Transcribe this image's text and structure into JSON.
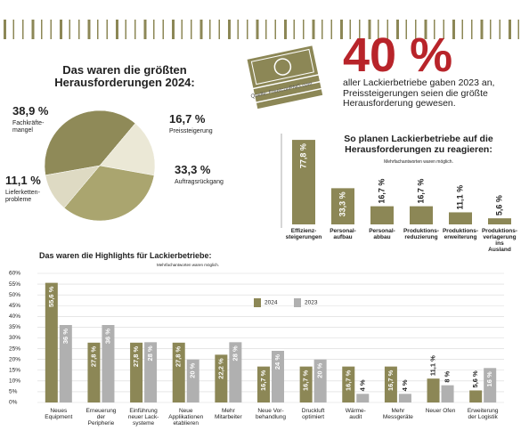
{
  "big_number": "40 %",
  "big_text": "aller Lackierbetriebe gaben 2023 an,\nPreissteigerungen seien die größte\nHerausforderung gewesen.",
  "icon_source": "Quelle: FreeIconPNG.com",
  "chart_data": [
    {
      "type": "pie",
      "title": "Das waren die größten\nHerausforderungen 2024:",
      "categories": [
        "Fachkräfte-\nmangel",
        "Preissteigerung",
        "Auftragsrückgang",
        "Lieferketten-\nprobleme"
      ],
      "values": [
        38.9,
        16.7,
        33.3,
        11.1
      ],
      "value_labels": [
        "38,9 %",
        "16,7 %",
        "33,3 %",
        "11,1 %"
      ],
      "colors": [
        "#8f8a58",
        "#ebe8d6",
        "#aaa56f",
        "#dedac3"
      ]
    },
    {
      "type": "bar",
      "title": "So planen Lackierbetriebe auf die\nHerausforderungen zu reagieren:",
      "subtitle": "Mehrfachantworten waren möglich.",
      "categories": [
        "Effizienz-\nsteigerungen",
        "Personal-\naufbau",
        "Personal-\nabbau",
        "Produktions-\nreduzierung",
        "Produktions-\nerweiterung",
        "Produktions-\nverlagerung ins\nAusland"
      ],
      "values": [
        77.8,
        33.3,
        16.7,
        16.7,
        11.1,
        5.6
      ],
      "value_labels": [
        "77,8 %",
        "33,3 %",
        "16,7 %",
        "16,7 %",
        "11,1 %",
        "5,6 %"
      ],
      "color": "#8c8756"
    },
    {
      "type": "grouped_bar",
      "title": "Das waren die Highlights für Lackierbetriebe:",
      "subtitle": "Mehrfachantworten waren möglich.",
      "categories": [
        "Neues\nEquipment",
        "Erneuerung\nder\nPeripherie",
        "Einführung\nneuer Lack-\nsysteme",
        "Neue\nApplikationen\netablieren",
        "Mehr\nMitarbeiter",
        "Neue Vor-\nbehandlung",
        "Druckluft\noptimiert",
        "Wärme-\naudit",
        "Mehr\nMessgeräte",
        "Neuer Ofen",
        "Erweiterung\nder Logistik"
      ],
      "series": [
        {
          "name": "2024",
          "color": "#8c8756",
          "values": [
            55.6,
            27.8,
            27.8,
            27.8,
            22.2,
            16.7,
            16.7,
            16.7,
            16.7,
            11.1,
            5.6
          ],
          "value_labels": [
            "55,6 %",
            "27,8 %",
            "27,8 %",
            "27,8 %",
            "22,2 %",
            "16,7 %",
            "16,7 %",
            "16,7 %",
            "16,7 %",
            "11,1 %",
            "5,6 %"
          ]
        },
        {
          "name": "2023",
          "color": "#b0b0b0",
          "values": [
            36,
            36,
            28,
            20,
            28,
            24,
            20,
            4,
            4,
            8,
            16
          ],
          "value_labels": [
            "36 %",
            "36 %",
            "28 %",
            "20 %",
            "28 %",
            "24 %",
            "20 %",
            "4 %",
            "4 %",
            "8 %",
            "16 %"
          ]
        }
      ],
      "ylim": [
        0,
        60
      ],
      "yticks": [
        {
          "value": 0,
          "label": "0%"
        },
        {
          "value": 5,
          "label": "5%"
        },
        {
          "value": 10,
          "label": "10%"
        },
        {
          "value": 15,
          "label": "15%"
        },
        {
          "value": 20,
          "label": "20%"
        },
        {
          "value": 25,
          "label": "25%"
        },
        {
          "value": 30,
          "label": "30%"
        },
        {
          "value": 35,
          "label": "35%"
        },
        {
          "value": 40,
          "label": "40%"
        },
        {
          "value": 45,
          "label": "45%"
        },
        {
          "value": 50,
          "label": "50%"
        },
        {
          "value": 55,
          "label": "55%"
        },
        {
          "value": 60,
          "label": "60%"
        }
      ],
      "grid": true
    }
  ]
}
